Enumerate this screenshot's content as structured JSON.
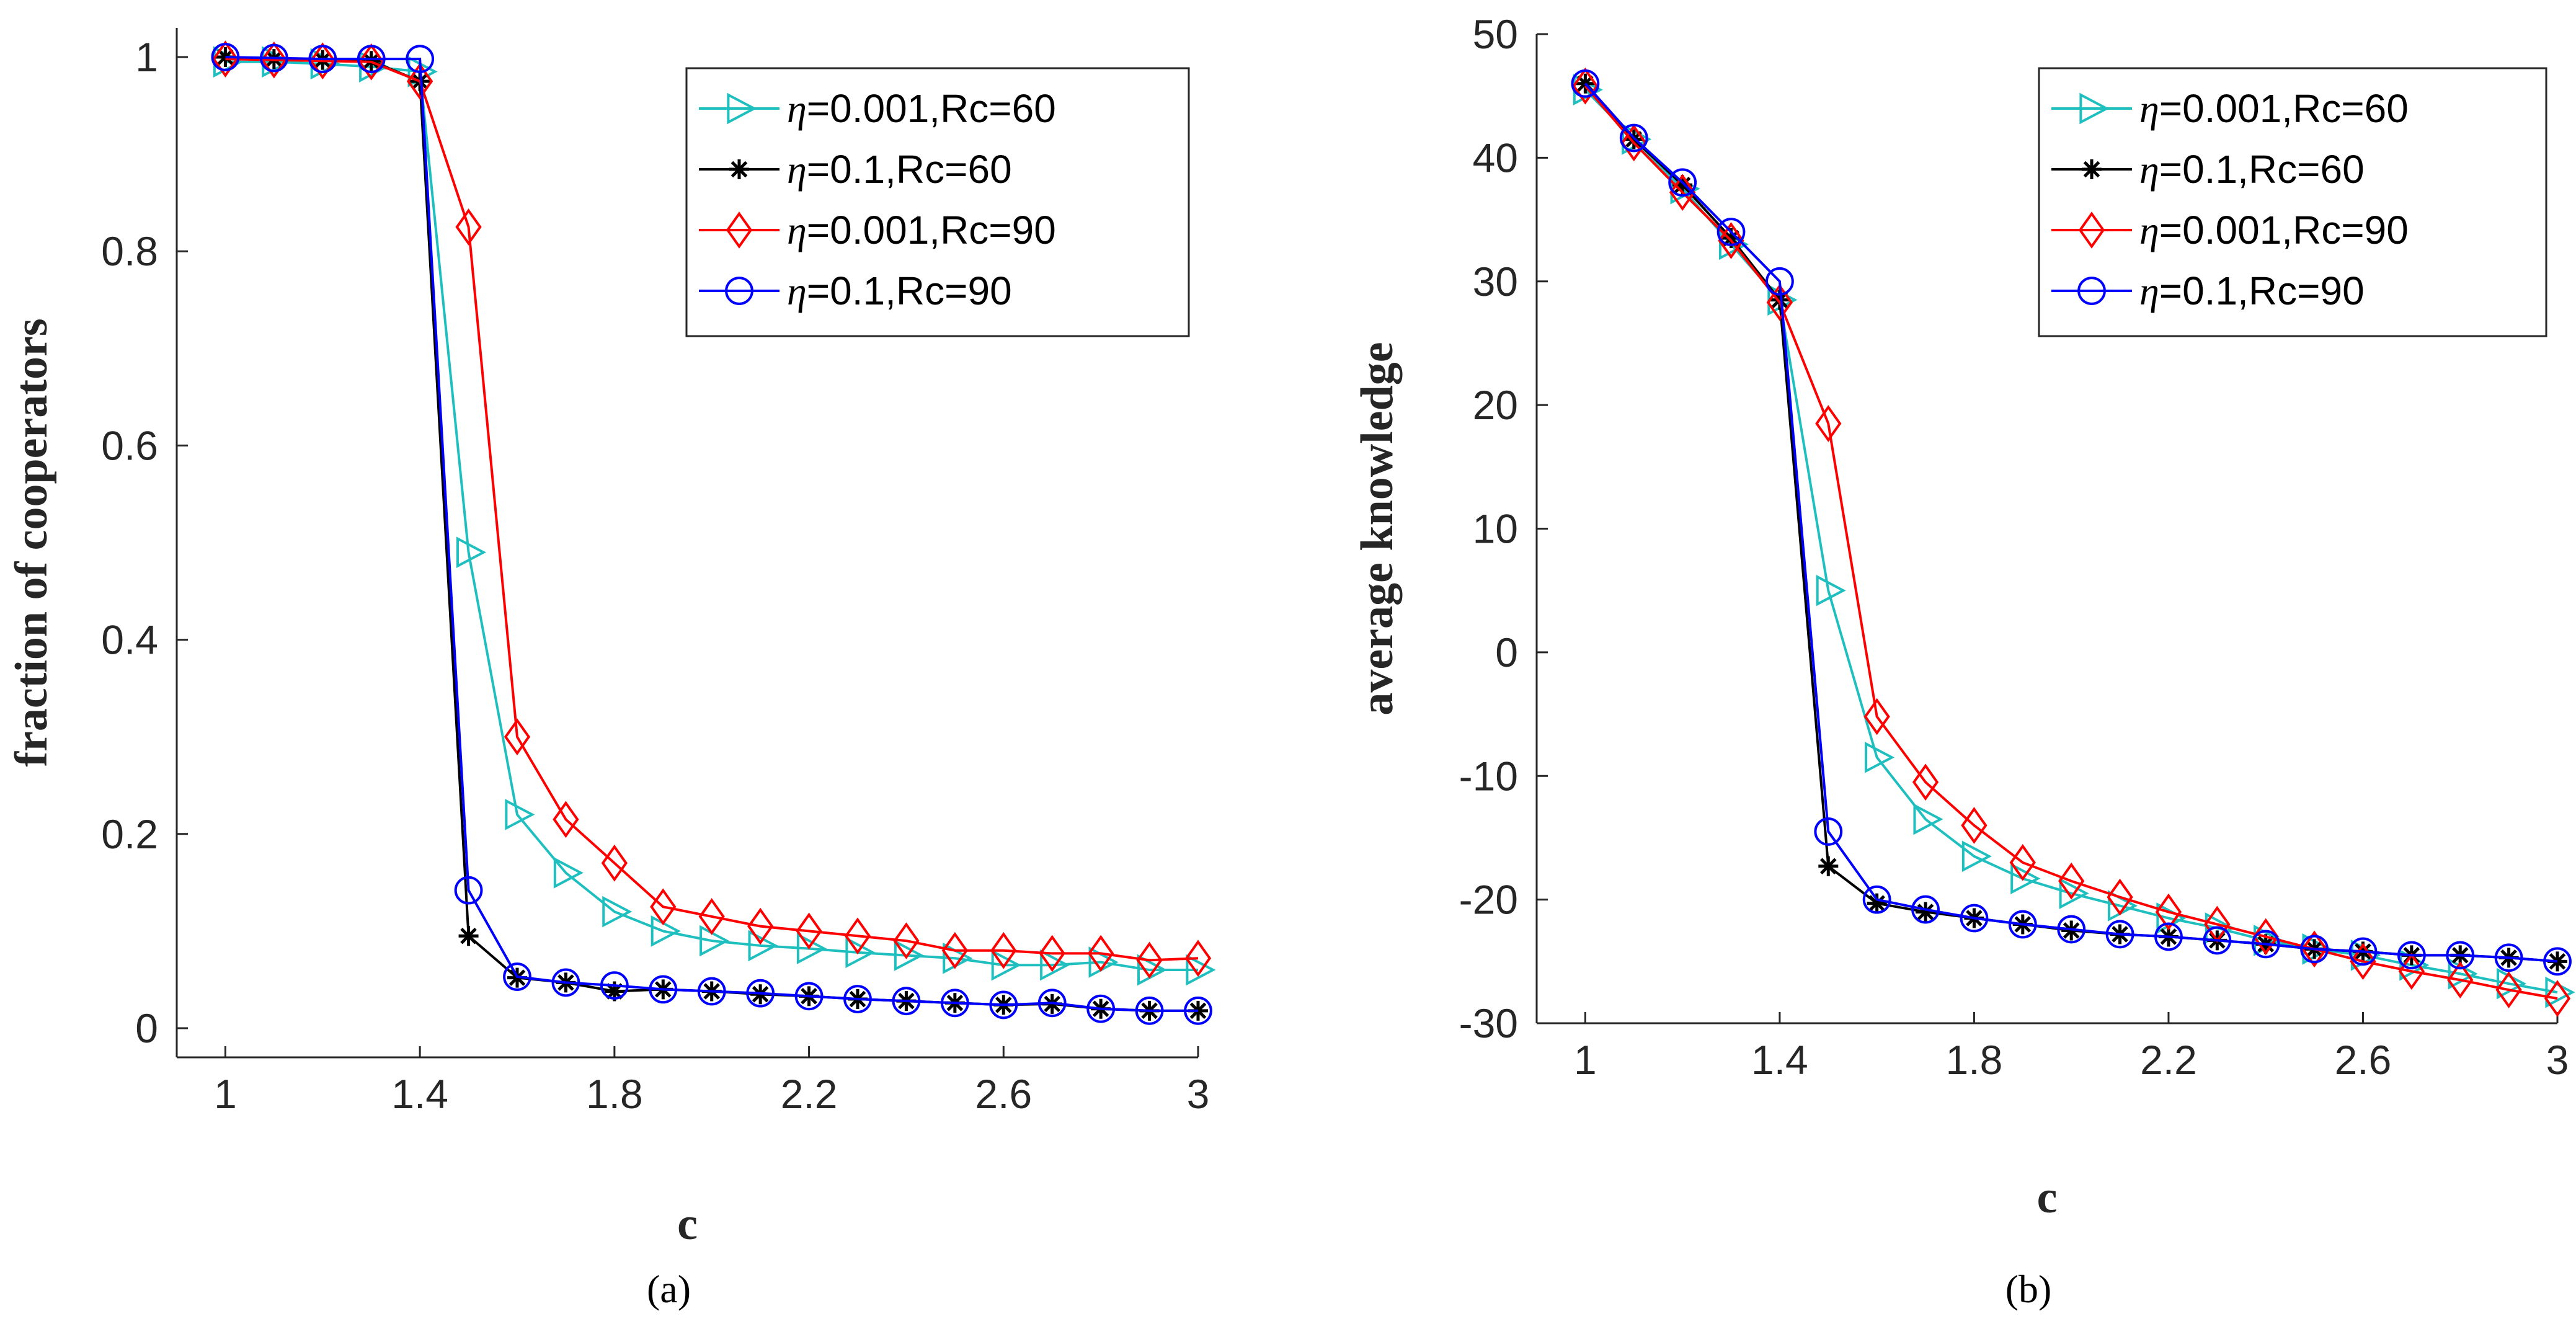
{
  "chart_data": [
    {
      "type": "line",
      "panel_label": "(a)",
      "xlabel": "c",
      "ylabel": "fraction of cooperators",
      "xlim": [
        0.9,
        3.0
      ],
      "ylim": [
        -0.03,
        1.03
      ],
      "xticks": [
        1,
        1.4,
        1.8,
        2.2,
        2.6,
        3
      ],
      "xtick_labels": [
        "1",
        "1.4",
        "1.8",
        "2.2",
        "2.6",
        "3"
      ],
      "yticks": [
        0,
        0.2,
        0.4,
        0.6,
        0.8,
        1
      ],
      "ytick_labels": [
        "0",
        "0.2",
        "0.4",
        "0.6",
        "0.8",
        "1"
      ],
      "grid": false,
      "legend_position": "top-right",
      "x": [
        1.0,
        1.1,
        1.2,
        1.3,
        1.4,
        1.5,
        1.6,
        1.7,
        1.8,
        1.9,
        2.0,
        2.1,
        2.2,
        2.3,
        2.4,
        2.5,
        2.6,
        2.7,
        2.8,
        2.9,
        3.0
      ],
      "series": [
        {
          "eta": "η",
          "rest": "=0.001,Rc=60",
          "name": "η=0.001,Rc=60",
          "color": "#1fbfbf",
          "marker": "triangle-right",
          "values": [
            0.995,
            0.995,
            0.993,
            0.99,
            0.985,
            0.49,
            0.22,
            0.16,
            0.12,
            0.1,
            0.09,
            0.085,
            0.082,
            0.078,
            0.075,
            0.072,
            0.065,
            0.065,
            0.068,
            0.06,
            0.06
          ]
        },
        {
          "eta": "η",
          "rest": "=0.1,Rc=60",
          "name": "η=0.1,Rc=60",
          "color": "#000000",
          "marker": "asterisk",
          "values": [
            1.0,
            0.998,
            0.997,
            0.996,
            0.975,
            0.095,
            0.052,
            0.047,
            0.038,
            0.04,
            0.038,
            0.035,
            0.033,
            0.03,
            0.028,
            0.026,
            0.024,
            0.025,
            0.02,
            0.018,
            0.018
          ]
        },
        {
          "eta": "η",
          "rest": "=0.001,Rc=90",
          "name": "η=0.001,Rc=90",
          "color": "#ff0000",
          "marker": "diamond",
          "values": [
            0.998,
            0.997,
            0.996,
            0.995,
            0.975,
            0.825,
            0.3,
            0.215,
            0.17,
            0.125,
            0.115,
            0.105,
            0.1,
            0.095,
            0.09,
            0.08,
            0.08,
            0.077,
            0.077,
            0.07,
            0.072
          ]
        },
        {
          "eta": "η",
          "rest": "=0.1,Rc=90",
          "name": "η=0.1,Rc=90",
          "color": "#0000ff",
          "marker": "circle",
          "values": [
            1.0,
            0.999,
            0.998,
            0.998,
            0.998,
            0.142,
            0.053,
            0.047,
            0.044,
            0.04,
            0.038,
            0.036,
            0.033,
            0.03,
            0.028,
            0.026,
            0.024,
            0.026,
            0.02,
            0.018,
            0.018
          ]
        }
      ]
    },
    {
      "type": "line",
      "panel_label": "(b)",
      "xlabel": "c",
      "ylabel": "average knowledge",
      "xlim": [
        0.9,
        3.0
      ],
      "ylim": [
        -30,
        50
      ],
      "xticks": [
        1,
        1.4,
        1.8,
        2.2,
        2.6,
        3
      ],
      "xtick_labels": [
        "1",
        "1.4",
        "1.8",
        "2.2",
        "2.6",
        "3"
      ],
      "yticks": [
        -30,
        -20,
        -10,
        0,
        10,
        20,
        30,
        40,
        50
      ],
      "ytick_labels": [
        "-30",
        "-20",
        "-10",
        "0",
        "10",
        "20",
        "30",
        "40",
        "50"
      ],
      "grid": false,
      "legend_position": "top-right",
      "x": [
        1.0,
        1.1,
        1.2,
        1.3,
        1.4,
        1.5,
        1.6,
        1.7,
        1.8,
        1.9,
        2.0,
        2.1,
        2.2,
        2.3,
        2.4,
        2.5,
        2.6,
        2.7,
        2.8,
        2.9,
        3.0
      ],
      "series": [
        {
          "eta": "η",
          "rest": "=0.001,Rc=60",
          "name": "η=0.001,Rc=60",
          "color": "#1fbfbf",
          "marker": "triangle-right",
          "values": [
            45.5,
            41.5,
            37.5,
            33.0,
            28.5,
            5.0,
            -8.5,
            -13.5,
            -16.5,
            -18.3,
            -19.5,
            -20.5,
            -21.5,
            -22.3,
            -23.3,
            -24.0,
            -24.5,
            -25.3,
            -26.0,
            -26.8,
            -27.5
          ]
        },
        {
          "eta": "η",
          "rest": "=0.1,Rc=60",
          "name": "η=0.1,Rc=60",
          "color": "#000000",
          "marker": "asterisk",
          "values": [
            46.0,
            41.5,
            37.8,
            33.5,
            28.5,
            -17.3,
            -20.3,
            -21.0,
            -21.5,
            -22.0,
            -22.5,
            -22.8,
            -23.0,
            -23.3,
            -23.6,
            -24.0,
            -24.2,
            -24.5,
            -24.5,
            -24.7,
            -25.0
          ]
        },
        {
          "eta": "η",
          "rest": "=0.001,Rc=90",
          "name": "η=0.001,Rc=90",
          "color": "#ff0000",
          "marker": "diamond",
          "values": [
            45.8,
            41.2,
            37.2,
            33.3,
            28.3,
            18.5,
            -5.2,
            -10.5,
            -14.0,
            -17.0,
            -18.5,
            -19.8,
            -21.0,
            -22.0,
            -23.0,
            -24.0,
            -25.0,
            -25.8,
            -26.5,
            -27.3,
            -28.0
          ]
        },
        {
          "eta": "η",
          "rest": "=0.1,Rc=90",
          "name": "η=0.1,Rc=90",
          "color": "#0000ff",
          "marker": "circle",
          "values": [
            46.0,
            41.6,
            38.0,
            34.0,
            30.0,
            -14.5,
            -20.0,
            -20.8,
            -21.5,
            -22.0,
            -22.4,
            -22.8,
            -23.0,
            -23.3,
            -23.6,
            -24.0,
            -24.2,
            -24.5,
            -24.5,
            -24.7,
            -25.0
          ]
        }
      ]
    }
  ]
}
